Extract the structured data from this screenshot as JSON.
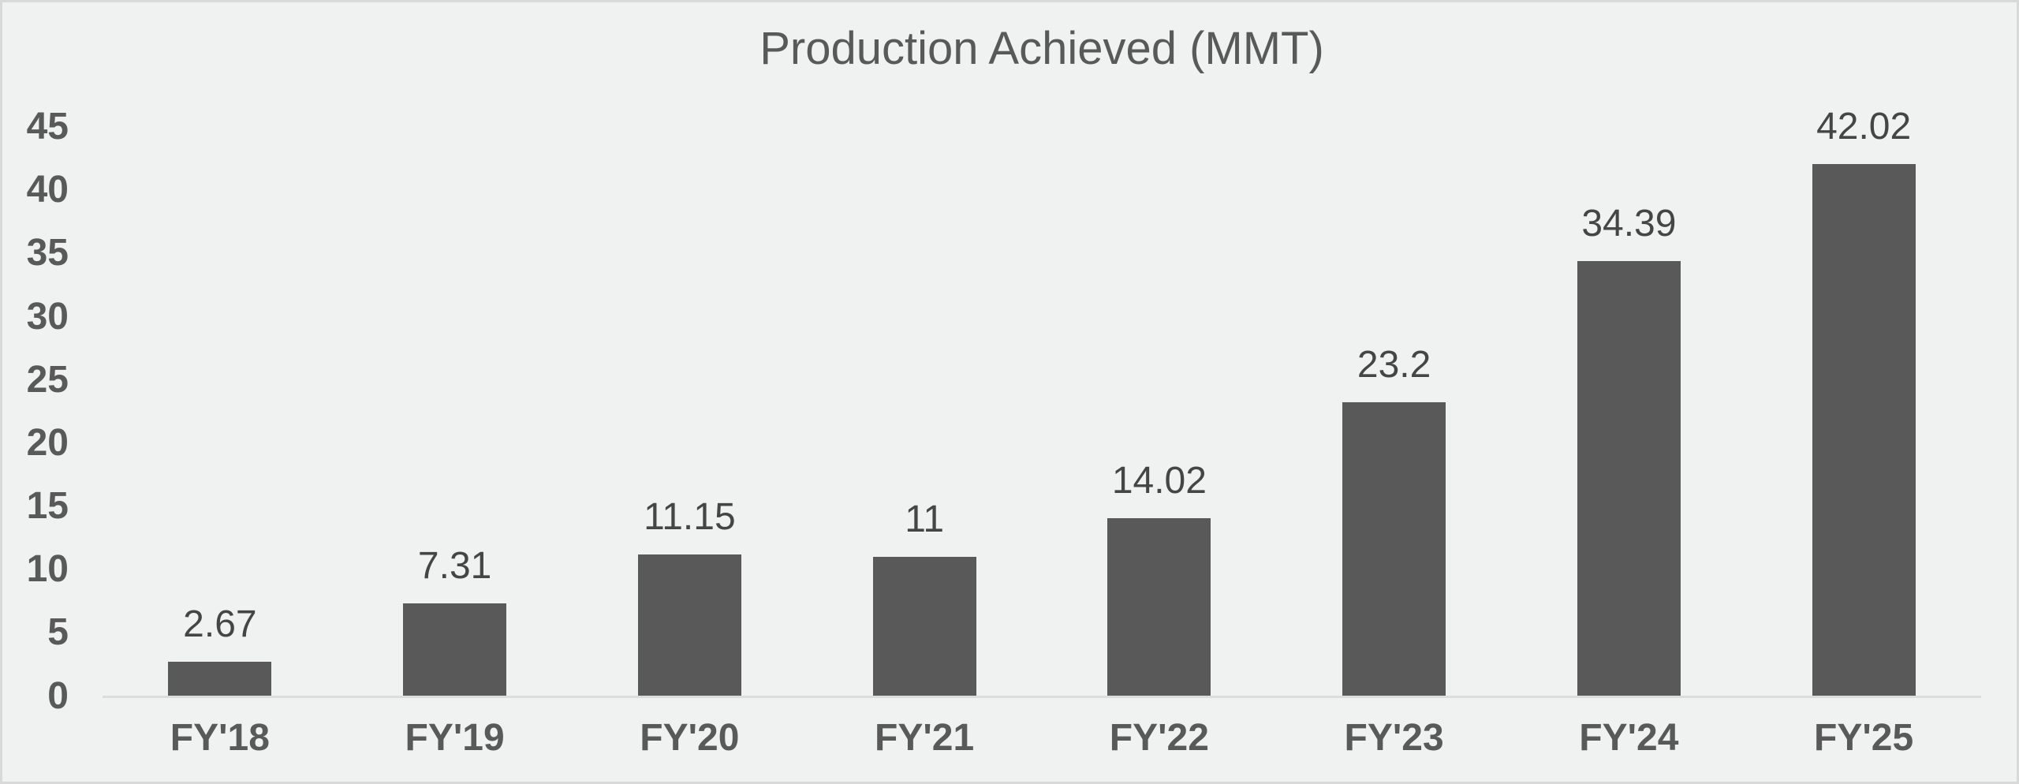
{
  "chart_data": {
    "type": "bar",
    "title": "Production Achieved (MMT)",
    "categories": [
      "FY'18",
      "FY'19",
      "FY'20",
      "FY'21",
      "FY'22",
      "FY'23",
      "FY'24",
      "FY'25"
    ],
    "values": [
      2.67,
      7.31,
      11.15,
      11,
      14.02,
      23.2,
      34.39,
      42.02
    ],
    "data_labels": [
      "2.67",
      "7.31",
      "11.15",
      "11",
      "14.02",
      "23.2",
      "34.39",
      "42.02"
    ],
    "xlabel": "",
    "ylabel": "",
    "y_ticks": [
      0,
      5,
      10,
      15,
      20,
      25,
      30,
      35,
      40,
      45
    ],
    "ylim": [
      0,
      45
    ],
    "grid": false,
    "legend": false,
    "colors": {
      "background": "#f0f1f1",
      "frame_border": "#d9d9d9",
      "bar_fill": "#595959",
      "axis_line": "#dcdcdc",
      "title_text": "#595959",
      "tick_text": "#595959",
      "category_text": "#595959",
      "data_label_text": "#454545"
    }
  }
}
